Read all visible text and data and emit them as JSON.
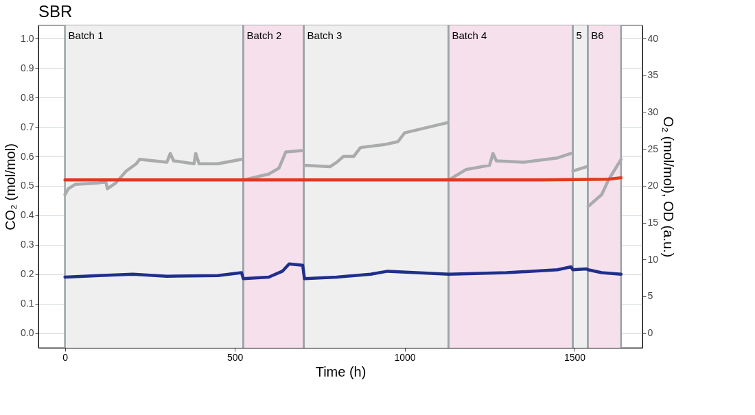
{
  "chart_data": {
    "type": "line",
    "title": "SBR",
    "xlabel": "Time (h)",
    "ylabel": "CO₂ (mol/mol)",
    "y2label": "O₂ (mol/mol), OD (a.u.)",
    "xlim": [
      -78,
      1700
    ],
    "xticks": [
      0,
      500,
      1000,
      1500
    ],
    "ylim": [
      -0.05,
      1.045
    ],
    "yticks": [
      {
        "value": 0,
        "label": "0.0"
      },
      0.1,
      0.2,
      0.3,
      0.4,
      0.5,
      0.6,
      0.7,
      0.8,
      0.9,
      {
        "value": 1,
        "label": "1.0"
      }
    ],
    "y2lim": [
      -2,
      41.8
    ],
    "y2ticks": [
      0,
      5,
      10,
      15,
      20,
      25,
      30,
      35,
      40
    ],
    "grid": true,
    "line_style": "solid",
    "marker": "none",
    "bands": [
      {
        "axis": "x",
        "from": 0,
        "to": 525,
        "label": "Batch 1",
        "color": "#efefef"
      },
      {
        "axis": "x",
        "from": 525,
        "to": 703,
        "label": "Batch 2",
        "color": "#f6e0ec"
      },
      {
        "axis": "x",
        "from": 703,
        "to": 1129,
        "label": "Batch 3",
        "color": "#efefef"
      },
      {
        "axis": "x",
        "from": 1129,
        "to": 1495,
        "label": "Batch 4",
        "color": "#f6e0ec"
      },
      {
        "axis": "x",
        "from": 1495,
        "to": 1539,
        "label": "5",
        "color": "#efefef"
      },
      {
        "axis": "x",
        "from": 1539,
        "to": 1637,
        "label": "B6",
        "color": "#f6e0ec"
      }
    ],
    "series": [
      {
        "color": "#a9abad",
        "axis": "y2",
        "x": [
          0,
          10,
          30,
          100,
          120,
          125,
          150,
          180,
          210,
          220,
          300,
          310,
          320,
          380,
          385,
          395,
          450,
          520,
          522,
          525,
          600,
          630,
          650,
          700,
          702,
          705,
          780,
          800,
          820,
          850,
          870,
          940,
          980,
          1000,
          1128,
          1129,
          1130,
          1180,
          1250,
          1260,
          1270,
          1350,
          1450,
          1490,
          1492,
          1495,
          1535,
          1537,
          1540,
          1580,
          1600,
          1637
        ],
        "values": [
          18.8,
          19.6,
          20.2,
          20.4,
          20.6,
          19.6,
          20.4,
          22,
          23,
          23.6,
          23.2,
          24.4,
          23.4,
          23,
          24.4,
          23,
          23,
          23.6,
          null,
          20.8,
          21.6,
          22.4,
          24.6,
          24.8,
          null,
          22.8,
          22.6,
          23.2,
          24,
          24,
          25.2,
          25.6,
          26,
          27.2,
          28.6,
          null,
          20.8,
          22.2,
          22.8,
          24.4,
          23.4,
          23.2,
          23.8,
          24.4,
          null,
          22,
          22.6,
          null,
          17.2,
          18.8,
          20.8,
          23.6
        ]
      },
      {
        "color": "#e03a1e",
        "axis": "y2",
        "x": [
          0,
          200,
          400,
          600,
          800,
          1000,
          1200,
          1400,
          1600,
          1637
        ],
        "values": [
          20.8,
          20.8,
          20.8,
          20.8,
          20.8,
          20.8,
          20.8,
          20.8,
          20.9,
          21.1
        ]
      },
      {
        "color": "#1f2f8a",
        "x": [
          0,
          100,
          200,
          300,
          450,
          520,
          525,
          600,
          640,
          660,
          700,
          705,
          800,
          900,
          950,
          1130,
          1300,
          1450,
          1490,
          1495,
          1535,
          1540,
          1580,
          1637
        ],
        "values": [
          0.19,
          0.195,
          0.2,
          0.193,
          0.195,
          0.205,
          0.185,
          0.19,
          0.21,
          0.235,
          0.23,
          0.185,
          0.19,
          0.2,
          0.21,
          0.2,
          0.205,
          0.215,
          0.225,
          0.215,
          0.218,
          0.215,
          0.205,
          0.2
        ]
      }
    ]
  }
}
